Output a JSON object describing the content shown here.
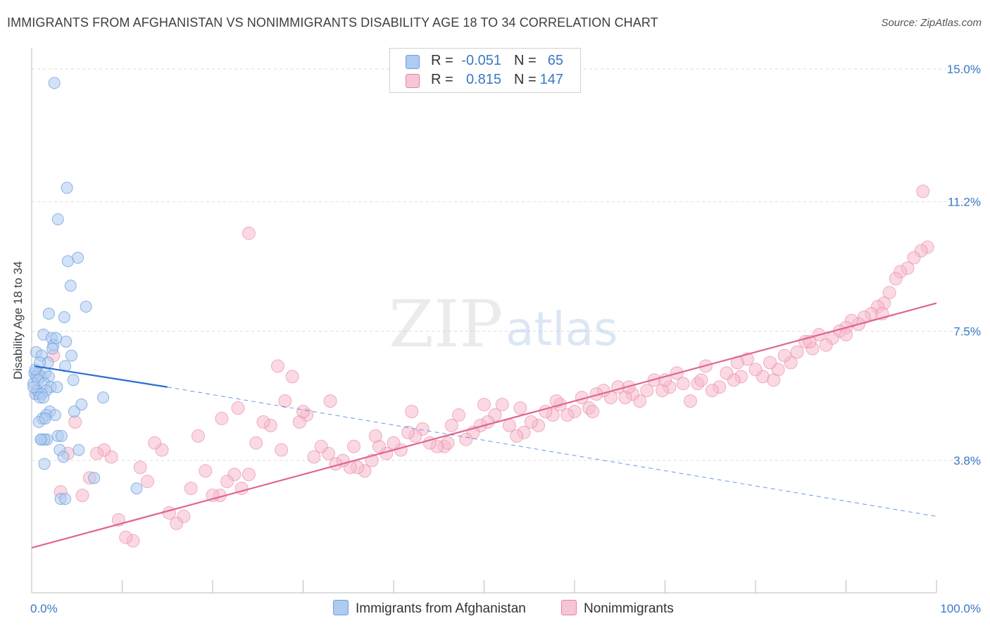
{
  "header": {
    "title": "IMMIGRANTS FROM AFGHANISTAN VS NONIMMIGRANTS DISABILITY AGE 18 TO 34 CORRELATION CHART",
    "source": "Source: ZipAtlas.com"
  },
  "watermark": {
    "zip": "ZIP",
    "atlas": "atlas"
  },
  "legend": {
    "rows": [
      {
        "r_label": "R =",
        "r_value": "-0.051",
        "n_label": "N =",
        "n_value": "65"
      },
      {
        "r_label": "R =",
        "r_value": "0.815",
        "n_label": "N =",
        "n_value": "147"
      }
    ]
  },
  "bottom_legend": [
    {
      "label": "Immigrants from Afghanistan"
    },
    {
      "label": "Nonimmigrants"
    }
  ],
  "colors": {
    "blue_fill": "#aecbf0",
    "blue_stroke": "#6e9fdc",
    "blue_line": "#2a6dd1",
    "pink_fill": "#f5b9cc",
    "pink_stroke": "#e8819f",
    "pink_line": "#e0668f",
    "tick_label": "#3a78c4",
    "grid": "#dddddd"
  },
  "chart_data": {
    "type": "scatter",
    "title": "IMMIGRANTS FROM AFGHANISTAN VS NONIMMIGRANTS DISABILITY AGE 18 TO 34 CORRELATION CHART",
    "xlabel": "",
    "ylabel": "Disability Age 18 to 34",
    "xlim": [
      0,
      100
    ],
    "ylim": [
      0,
      15.5
    ],
    "x_tick_labels": [
      "0.0%",
      "100.0%"
    ],
    "y_ticks": [
      3.8,
      7.5,
      11.2,
      15.0
    ],
    "y_tick_labels": [
      "3.8%",
      "7.5%",
      "11.2%",
      "15.0%"
    ],
    "grid": "horizontal dashed",
    "legend_position": "top-center",
    "series": [
      {
        "name": "Immigrants from Afghanistan",
        "regression": {
          "x": [
            0.3,
            15
          ],
          "y": [
            6.5,
            5.9
          ],
          "dashed_extension": {
            "x": [
              15,
              100
            ],
            "y": [
              5.9,
              2.2
            ]
          }
        },
        "points": [
          [
            2.5,
            14.6
          ],
          [
            3.9,
            11.6
          ],
          [
            2.9,
            10.7
          ],
          [
            5.1,
            9.6
          ],
          [
            4.0,
            9.5
          ],
          [
            4.3,
            8.8
          ],
          [
            6.0,
            8.2
          ],
          [
            1.9,
            8.0
          ],
          [
            3.6,
            7.9
          ],
          [
            1.3,
            7.4
          ],
          [
            2.2,
            7.3
          ],
          [
            2.4,
            7.1
          ],
          [
            3.8,
            7.2
          ],
          [
            2.3,
            7.0
          ],
          [
            4.4,
            6.8
          ],
          [
            0.5,
            6.9
          ],
          [
            1.1,
            6.8
          ],
          [
            3.7,
            6.5
          ],
          [
            0.7,
            6.3
          ],
          [
            1.5,
            6.3
          ],
          [
            4.6,
            6.1
          ],
          [
            0.3,
            6.3
          ],
          [
            0.5,
            6.2
          ],
          [
            1.0,
            6.2
          ],
          [
            1.9,
            6.2
          ],
          [
            0.2,
            6.0
          ],
          [
            0.7,
            6.1
          ],
          [
            1.4,
            6.0
          ],
          [
            2.1,
            5.9
          ],
          [
            0.6,
            5.8
          ],
          [
            1.6,
            5.8
          ],
          [
            0.4,
            5.7
          ],
          [
            0.8,
            5.7
          ],
          [
            1.1,
            5.7
          ],
          [
            0.2,
            5.9
          ],
          [
            0.9,
            5.6
          ],
          [
            1.3,
            5.6
          ],
          [
            7.9,
            5.6
          ],
          [
            5.5,
            5.4
          ],
          [
            4.7,
            5.2
          ],
          [
            2.0,
            5.2
          ],
          [
            1.6,
            5.1
          ],
          [
            2.6,
            5.1
          ],
          [
            1.2,
            5.0
          ],
          [
            0.8,
            4.9
          ],
          [
            2.9,
            4.5
          ],
          [
            3.3,
            4.5
          ],
          [
            1.1,
            4.4
          ],
          [
            1.7,
            4.4
          ],
          [
            1.4,
            4.4
          ],
          [
            5.2,
            4.1
          ],
          [
            3.1,
            4.1
          ],
          [
            3.5,
            3.9
          ],
          [
            1.4,
            3.7
          ],
          [
            6.9,
            3.3
          ],
          [
            11.6,
            3.0
          ],
          [
            3.2,
            2.7
          ],
          [
            3.7,
            2.7
          ],
          [
            1.0,
            4.4
          ],
          [
            2.8,
            5.9
          ],
          [
            0.4,
            6.4
          ],
          [
            1.8,
            6.6
          ],
          [
            2.7,
            7.3
          ],
          [
            0.9,
            6.6
          ],
          [
            1.5,
            5.0
          ]
        ]
      },
      {
        "name": "Nonimmigrants",
        "regression": {
          "x": [
            0,
            100
          ],
          "y": [
            1.3,
            8.3
          ]
        },
        "points": [
          [
            24.0,
            10.3
          ],
          [
            98.5,
            11.5
          ],
          [
            99.0,
            9.9
          ],
          [
            98.3,
            9.8
          ],
          [
            97.5,
            9.6
          ],
          [
            96.8,
            9.3
          ],
          [
            96.0,
            9.2
          ],
          [
            95.5,
            9.0
          ],
          [
            94.8,
            8.6
          ],
          [
            94.2,
            8.3
          ],
          [
            93.5,
            8.2
          ],
          [
            92.8,
            8.0
          ],
          [
            92.0,
            7.9
          ],
          [
            91.4,
            7.7
          ],
          [
            90.6,
            7.8
          ],
          [
            90.0,
            7.6
          ],
          [
            89.3,
            7.5
          ],
          [
            88.5,
            7.3
          ],
          [
            87.8,
            7.1
          ],
          [
            87.0,
            7.4
          ],
          [
            86.3,
            7.0
          ],
          [
            85.5,
            7.2
          ],
          [
            84.6,
            6.9
          ],
          [
            83.9,
            6.6
          ],
          [
            83.2,
            6.8
          ],
          [
            82.5,
            6.4
          ],
          [
            81.6,
            6.6
          ],
          [
            80.8,
            6.2
          ],
          [
            80.0,
            6.4
          ],
          [
            79.1,
            6.7
          ],
          [
            78.4,
            6.2
          ],
          [
            77.6,
            6.1
          ],
          [
            76.8,
            6.3
          ],
          [
            76.0,
            5.9
          ],
          [
            75.2,
            5.8
          ],
          [
            74.5,
            6.5
          ],
          [
            73.6,
            6.0
          ],
          [
            72.8,
            5.5
          ],
          [
            72.0,
            6.0
          ],
          [
            71.3,
            6.3
          ],
          [
            70.5,
            5.9
          ],
          [
            69.7,
            5.8
          ],
          [
            68.8,
            6.1
          ],
          [
            68.0,
            5.8
          ],
          [
            67.2,
            5.5
          ],
          [
            66.4,
            5.7
          ],
          [
            65.6,
            5.6
          ],
          [
            64.8,
            5.9
          ],
          [
            64.0,
            5.6
          ],
          [
            63.2,
            5.8
          ],
          [
            62.4,
            5.7
          ],
          [
            61.6,
            5.3
          ],
          [
            60.8,
            5.6
          ],
          [
            60.0,
            5.2
          ],
          [
            59.2,
            5.1
          ],
          [
            58.4,
            5.4
          ],
          [
            57.6,
            5.1
          ],
          [
            56.8,
            5.2
          ],
          [
            56.0,
            4.8
          ],
          [
            55.2,
            4.9
          ],
          [
            54.4,
            4.6
          ],
          [
            53.6,
            4.5
          ],
          [
            52.8,
            4.8
          ],
          [
            52.0,
            5.4
          ],
          [
            51.2,
            5.1
          ],
          [
            50.4,
            4.9
          ],
          [
            49.6,
            4.8
          ],
          [
            48.8,
            4.6
          ],
          [
            48.0,
            4.4
          ],
          [
            47.2,
            5.1
          ],
          [
            46.4,
            4.8
          ],
          [
            45.6,
            4.2
          ],
          [
            44.8,
            4.2
          ],
          [
            44.0,
            4.3
          ],
          [
            43.2,
            4.7
          ],
          [
            42.4,
            4.5
          ],
          [
            41.6,
            4.6
          ],
          [
            40.8,
            4.1
          ],
          [
            40.0,
            4.3
          ],
          [
            39.2,
            4.0
          ],
          [
            38.4,
            4.2
          ],
          [
            37.6,
            3.8
          ],
          [
            36.8,
            3.5
          ],
          [
            36.0,
            3.6
          ],
          [
            35.2,
            3.6
          ],
          [
            34.4,
            3.8
          ],
          [
            33.6,
            3.7
          ],
          [
            32.8,
            4.0
          ],
          [
            32.0,
            4.2
          ],
          [
            31.2,
            3.9
          ],
          [
            30.4,
            5.1
          ],
          [
            29.6,
            4.9
          ],
          [
            28.8,
            6.2
          ],
          [
            28.0,
            5.5
          ],
          [
            27.2,
            6.5
          ],
          [
            26.4,
            4.8
          ],
          [
            25.6,
            4.9
          ],
          [
            24.8,
            4.3
          ],
          [
            24.0,
            3.4
          ],
          [
            23.2,
            3.0
          ],
          [
            22.4,
            3.4
          ],
          [
            21.6,
            3.2
          ],
          [
            20.8,
            2.8
          ],
          [
            20.0,
            2.8
          ],
          [
            19.2,
            3.5
          ],
          [
            18.4,
            4.5
          ],
          [
            17.6,
            3.0
          ],
          [
            16.8,
            2.2
          ],
          [
            16.0,
            2.0
          ],
          [
            15.2,
            2.3
          ],
          [
            14.4,
            4.1
          ],
          [
            13.6,
            4.3
          ],
          [
            12.8,
            3.2
          ],
          [
            12.0,
            3.6
          ],
          [
            11.2,
            1.5
          ],
          [
            10.4,
            1.6
          ],
          [
            9.6,
            2.1
          ],
          [
            8.8,
            3.9
          ],
          [
            8.0,
            4.1
          ],
          [
            7.2,
            4.0
          ],
          [
            6.4,
            3.3
          ],
          [
            5.6,
            2.8
          ],
          [
            4.8,
            4.9
          ],
          [
            4.0,
            4.0
          ],
          [
            3.2,
            2.9
          ],
          [
            2.4,
            6.8
          ],
          [
            21.0,
            5.0
          ],
          [
            22.8,
            5.3
          ],
          [
            27.6,
            4.1
          ],
          [
            30.0,
            5.2
          ],
          [
            33.0,
            5.5
          ],
          [
            35.6,
            4.2
          ],
          [
            38.0,
            4.5
          ],
          [
            42.0,
            5.2
          ],
          [
            46.0,
            4.3
          ],
          [
            50.0,
            5.4
          ],
          [
            54.0,
            5.3
          ],
          [
            58.0,
            5.5
          ],
          [
            62.0,
            5.2
          ],
          [
            66.0,
            5.9
          ],
          [
            70.0,
            6.1
          ],
          [
            74.0,
            6.1
          ],
          [
            78.0,
            6.6
          ],
          [
            82.0,
            6.1
          ],
          [
            86.0,
            7.2
          ],
          [
            90.0,
            7.4
          ],
          [
            94.0,
            8.0
          ]
        ]
      }
    ]
  }
}
